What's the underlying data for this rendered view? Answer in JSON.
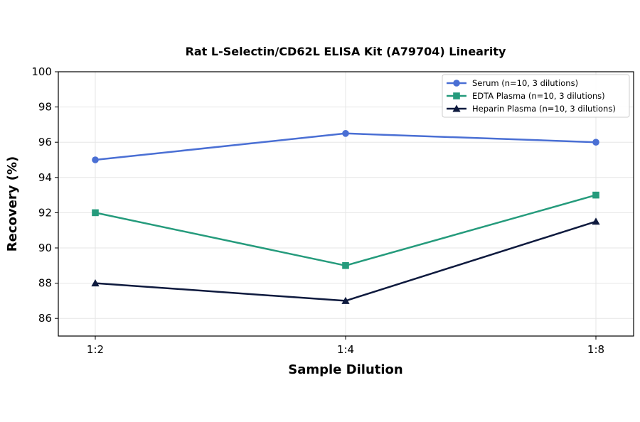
{
  "chart_data": {
    "type": "line",
    "title": "Rat L-Selectin/CD62L ELISA Kit (A79704) Linearity",
    "xlabel": "Sample Dilution",
    "ylabel": "Recovery (%)",
    "categories": [
      "1:2",
      "1:4",
      "1:8"
    ],
    "ylim": [
      85,
      100
    ],
    "yticks": [
      86,
      88,
      90,
      92,
      94,
      96,
      98,
      100
    ],
    "grid": true,
    "legend_position": "top-right",
    "series": [
      {
        "name": "Serum (n=10, 3 dilutions)",
        "values": [
          95,
          96.5,
          96
        ],
        "color": "#4a6fd4",
        "marker": "circle"
      },
      {
        "name": "EDTA Plasma (n=10, 3 dilutions)",
        "values": [
          92,
          89,
          93
        ],
        "color": "#259b7c",
        "marker": "square"
      },
      {
        "name": "Heparin Plasma (n=10, 3 dilutions)",
        "values": [
          88,
          87,
          91.5
        ],
        "color": "#0e1a3e",
        "marker": "triangle"
      }
    ]
  }
}
